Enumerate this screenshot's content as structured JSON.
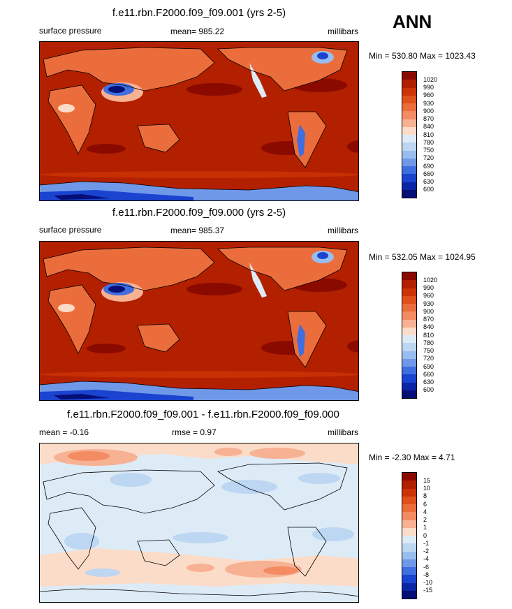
{
  "season": "ANN",
  "panels": [
    {
      "title": "f.e11.rbn.F2000.f09_f09.001 (yrs 2-5)",
      "left_label": "surface pressure",
      "center_label": "mean= 985.22",
      "right_label": "millibars",
      "minmax": "Min = 530.80 Max = 1023.43",
      "kind": "abs"
    },
    {
      "title": "f.e11.rbn.F2000.f09_f09.000 (yrs 2-5)",
      "left_label": "surface pressure",
      "center_label": "mean= 985.37",
      "right_label": "millibars",
      "minmax": "Min = 532.05 Max = 1024.95",
      "kind": "abs"
    },
    {
      "title": "f.e11.rbn.F2000.f09_f09.001 - f.e11.rbn.F2000.f09_f09.000",
      "left_label": "mean =  -0.16",
      "center_label": "rmse =   0.97",
      "right_label": "millibars",
      "minmax": "Min =  -2.30 Max =   4.71",
      "kind": "diff"
    }
  ],
  "colorbar_abs": {
    "labels": [
      "1020",
      "990",
      "960",
      "930",
      "900",
      "870",
      "840",
      "810",
      "780",
      "750",
      "720",
      "690",
      "660",
      "630",
      "600"
    ],
    "colors": [
      "#8b0a00",
      "#b22000",
      "#cc3305",
      "#e0501a",
      "#ec6d3c",
      "#f38c62",
      "#f7b193",
      "#fbdcc8",
      "#ddebf7",
      "#bdd6f2",
      "#99bdee",
      "#6f98e8",
      "#3f6ee0",
      "#1a43cf",
      "#0a26a6",
      "#050f75"
    ]
  },
  "colorbar_diff": {
    "labels": [
      "15",
      "10",
      "8",
      "6",
      "4",
      "2",
      "1",
      "0",
      "-1",
      "-2",
      "-4",
      "-6",
      "-8",
      "-10",
      "-15"
    ],
    "colors": [
      "#8b0a00",
      "#b22000",
      "#cc3305",
      "#e0501a",
      "#ec6d3c",
      "#f38c62",
      "#f7b193",
      "#fbdcc8",
      "#ddebf7",
      "#bdd6f2",
      "#99bdee",
      "#6f98e8",
      "#3f6ee0",
      "#1a43cf",
      "#0a26a6",
      "#050f75"
    ]
  }
}
